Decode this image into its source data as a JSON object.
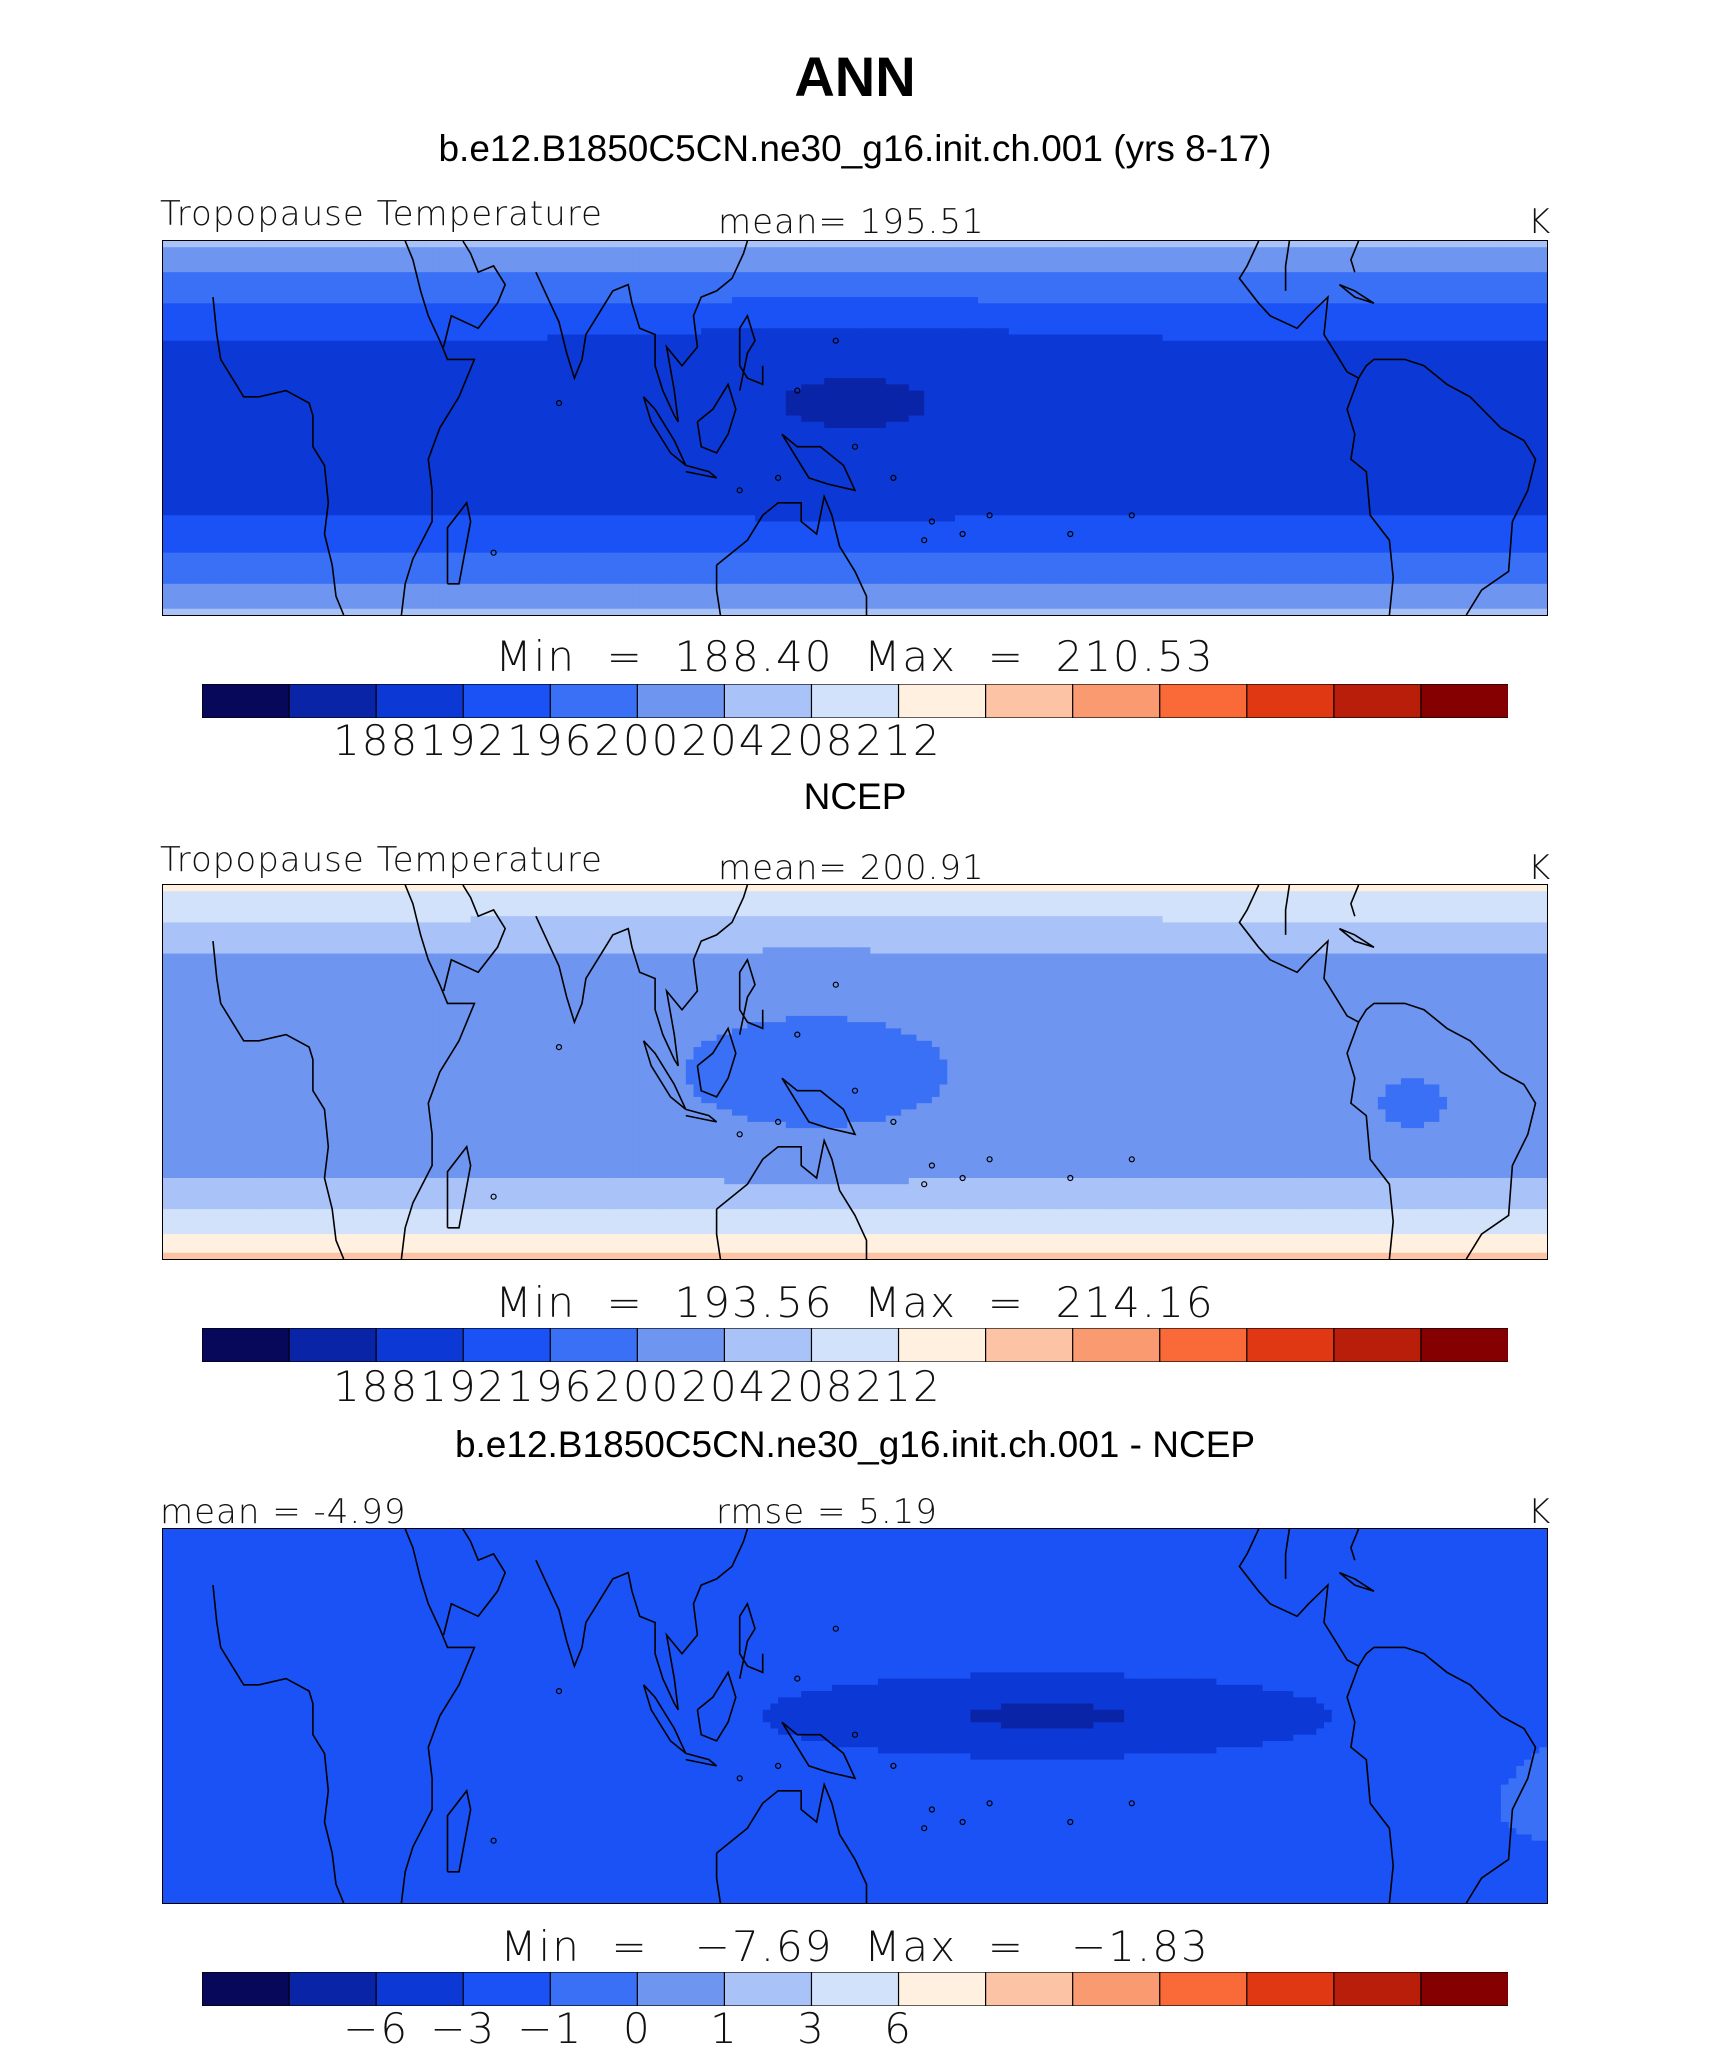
{
  "figure_title": "ANN",
  "colorbar_colors": [
    "#08085a",
    "#0a24a8",
    "#0c38d6",
    "#1a52f5",
    "#3a70f5",
    "#6e95f0",
    "#a9c3f8",
    "#d2e2fb",
    "#fff0e0",
    "#fcc4a4",
    "#fa9a70",
    "#fa6a38",
    "#e03812",
    "#b81e0a",
    "#850000"
  ],
  "chart_data": [
    {
      "type": "heatmap",
      "panel_title": "b.e12.B1850C5CN.ne30_g16.init.ch.001 (yrs 8-17)",
      "left_label": "Tropopause Temperature",
      "center_label": "mean=  195.51",
      "units": "K",
      "min_max_text": "Min  =  188.40  Max  =  210.53",
      "stats": {
        "mean": 195.51,
        "min": 188.4,
        "max": 210.53
      },
      "colorbar_tick_labels": [
        "188",
        "192",
        "196",
        "200",
        "204",
        "208",
        "212"
      ],
      "field": "model"
    },
    {
      "type": "heatmap",
      "panel_title": "NCEP",
      "left_label": "Tropopause Temperature",
      "center_label": "mean=  200.91",
      "units": "K",
      "min_max_text": "Min  =  193.56  Max  =  214.16",
      "stats": {
        "mean": 200.91,
        "min": 193.56,
        "max": 214.16
      },
      "colorbar_tick_labels": [
        "188",
        "192",
        "196",
        "200",
        "204",
        "208",
        "212"
      ],
      "field": "obs"
    },
    {
      "type": "heatmap",
      "panel_title": "b.e12.B1850C5CN.ne30_g16.init.ch.001 - NCEP",
      "left_label": "mean =    -4.99",
      "center_label": "rmse =     5.19",
      "units": "K",
      "min_max_text": "Min  =   −7.69  Max  =   −1.83",
      "stats": {
        "mean": -4.99,
        "rmse": 5.19,
        "min": -7.69,
        "max": -1.83
      },
      "colorbar_tick_labels": [
        "−6",
        "−3",
        "−1",
        "0",
        "1",
        "3",
        "6"
      ],
      "field": "diff"
    }
  ]
}
